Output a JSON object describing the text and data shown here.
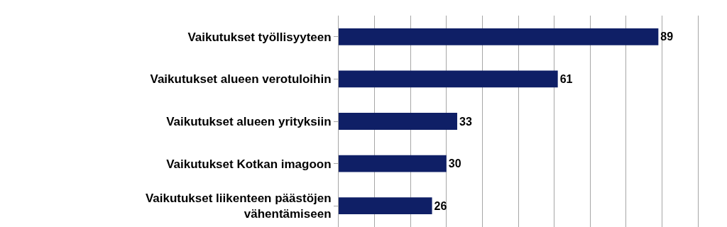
{
  "chart_data": {
    "type": "bar",
    "orientation": "horizontal",
    "categories": [
      "Vaikutukset työllisyyteen",
      "Vaikutukset alueen verotuloihin",
      "Vaikutukset alueen yrityksiin",
      "Vaikutukset Kotkan imagoon",
      "Vaikutukset liikenteen päästöjen vähentämiseen"
    ],
    "values": [
      89,
      61,
      33,
      30,
      26
    ],
    "color": "#0f1f66",
    "data_labels": true,
    "xlim": [
      0,
      100
    ],
    "xticks": [
      {
        "value": 0,
        "label": null
      },
      {
        "value": 10,
        "label": null
      },
      {
        "value": 20,
        "label": null
      },
      {
        "value": 30,
        "label": null
      },
      {
        "value": 40,
        "label": null
      },
      {
        "value": 50,
        "label": null
      },
      {
        "value": 60,
        "label": null
      },
      {
        "value": 70,
        "label": null
      },
      {
        "value": 80,
        "label": null
      },
      {
        "value": 90,
        "label": null
      },
      {
        "value": 100,
        "label": null
      }
    ],
    "grid": "x",
    "tick_labels": "y"
  }
}
